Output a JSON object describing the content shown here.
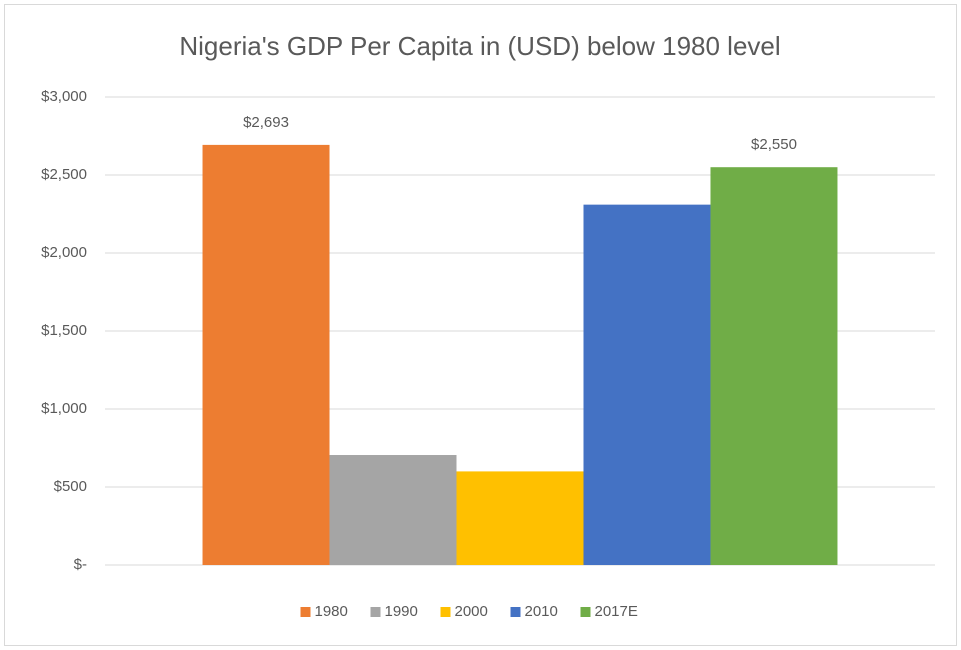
{
  "chart_data": {
    "type": "bar",
    "title": "Nigeria's GDP Per Capita in (USD) below 1980 level",
    "categories": [
      null
    ],
    "series": [
      {
        "name": "1980",
        "color": "#ed7d31",
        "values": [
          2693
        ],
        "value_labels": [
          "$2,693"
        ]
      },
      {
        "name": "1990",
        "color": "#a5a5a5",
        "values": [
          705
        ]
      },
      {
        "name": "2000",
        "color": "#ffc000",
        "values": [
          600
        ]
      },
      {
        "name": "2010",
        "color": "#4472c4",
        "values": [
          2310
        ]
      },
      {
        "name": "2017E",
        "color": "#70ad47",
        "values": [
          2550
        ],
        "value_labels": [
          "$2,550"
        ]
      }
    ],
    "ylim": [
      0,
      3000
    ],
    "yticks": [
      {
        "value": 0,
        "label": "$-"
      },
      {
        "value": 500,
        "label": "$500"
      },
      {
        "value": 1000,
        "label": "$1,000"
      },
      {
        "value": 1500,
        "label": "$1,500"
      },
      {
        "value": 2000,
        "label": "$2,000"
      },
      {
        "value": 2500,
        "label": "$2,500"
      },
      {
        "value": 3000,
        "label": "$3,000"
      }
    ],
    "grid": true,
    "legend": "bottom"
  }
}
